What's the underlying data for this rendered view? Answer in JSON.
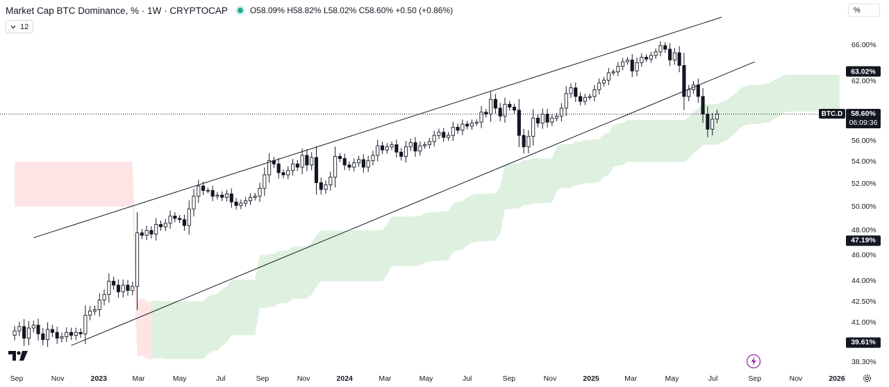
{
  "header": {
    "title": "Market Cap BTC Dominance, % · 1W · CRYPTOCAP",
    "open": "O58.09%",
    "high": "H58.82%",
    "low": "L58.02%",
    "close": "C58.60%",
    "change": "+0.50 (+0.86%)",
    "length_value": "12",
    "scale_mode": "%"
  },
  "colors": {
    "up_body": "#ffffff",
    "down_body": "#131722",
    "wick": "#131722",
    "cloud_bull": "#c8e6c9",
    "cloud_bear": "#ffcdd2",
    "channel_line": "#131722",
    "status_dot": "#22ab94"
  },
  "symbol_tag": "BTC.D",
  "price_tag": {
    "price": "58.60%",
    "countdown": "06:09:36"
  },
  "price_axis_labels": [
    "66.00%",
    "63.02%",
    "62.00%",
    "58.60%",
    "56.00%",
    "54.00%",
    "52.00%",
    "50.00%",
    "48.00%",
    "47.19%",
    "46.00%",
    "44.00%",
    "42.50%",
    "41.00%",
    "39.61%",
    "38.30%"
  ],
  "highlighted_labels": [
    "63.02%",
    "47.19%",
    "39.61%"
  ],
  "chart_data": {
    "type": "candlestick",
    "title": "Market Cap BTC Dominance, % · 1W · CRYPTOCAP",
    "interval": "1W",
    "y_unit": "%",
    "y_scale": "log",
    "ylim": [
      38.0,
      67.5
    ],
    "x_start": "2022-09",
    "x_end": "2026-01",
    "x_ticks": [
      {
        "label": "Sep",
        "date": "2022-09-01"
      },
      {
        "label": "Nov",
        "date": "2022-11-01"
      },
      {
        "label": "2023",
        "date": "2023-01-01",
        "bold": true
      },
      {
        "label": "Mar",
        "date": "2023-03-01"
      },
      {
        "label": "May",
        "date": "2023-05-01"
      },
      {
        "label": "Jul",
        "date": "2023-07-01"
      },
      {
        "label": "Sep",
        "date": "2023-09-01"
      },
      {
        "label": "Nov",
        "date": "2023-11-01"
      },
      {
        "label": "2024",
        "date": "2024-01-01",
        "bold": true
      },
      {
        "label": "Mar",
        "date": "2024-03-01"
      },
      {
        "label": "May",
        "date": "2024-05-01"
      },
      {
        "label": "Jul",
        "date": "2024-07-01"
      },
      {
        "label": "Sep",
        "date": "2024-09-01"
      },
      {
        "label": "Nov",
        "date": "2024-11-01"
      },
      {
        "label": "2025",
        "date": "2025-01-01",
        "bold": true
      },
      {
        "label": "Mar",
        "date": "2025-03-01"
      },
      {
        "label": "May",
        "date": "2025-05-01"
      },
      {
        "label": "Jul",
        "date": "2025-07-01"
      },
      {
        "label": "Sep",
        "date": "2025-09-01"
      },
      {
        "label": "Nov",
        "date": "2025-11-01"
      },
      {
        "label": "2026",
        "date": "2026-01-01",
        "bold": true
      }
    ],
    "closes_weekly": [
      40.4,
      40.7,
      39.9,
      40.6,
      40.8,
      40.2,
      39.8,
      40.5,
      40.3,
      39.9,
      40.0,
      40.3,
      40.1,
      40.3,
      40.2,
      41.5,
      41.8,
      41.9,
      42.6,
      43.0,
      44.0,
      43.7,
      43.2,
      43.7,
      43.3,
      43.6,
      47.8,
      47.6,
      48.0,
      47.7,
      48.5,
      48.3,
      48.6,
      49.2,
      49.0,
      48.9,
      48.4,
      49.8,
      50.9,
      51.8,
      51.4,
      51.4,
      50.9,
      51.0,
      50.8,
      51.1,
      50.4,
      50.1,
      50.3,
      50.5,
      50.8,
      50.9,
      51.6,
      52.8,
      54.1,
      53.8,
      53.0,
      52.8,
      53.2,
      53.8,
      53.5,
      54.6,
      53.7,
      54.4,
      52.1,
      51.5,
      51.9,
      52.6,
      54.5,
      54.3,
      53.7,
      53.5,
      53.9,
      54.2,
      53.5,
      54.1,
      54.6,
      55.5,
      55.1,
      55.4,
      55.6,
      54.9,
      54.5,
      55.4,
      55.8,
      55.0,
      55.5,
      55.6,
      55.9,
      56.5,
      56.8,
      56.3,
      56.5,
      57.3,
      57.0,
      57.6,
      57.4,
      57.7,
      57.8,
      58.8,
      58.6,
      60.1,
      59.2,
      58.4,
      59.6,
      59.3,
      59.0,
      56.5,
      55.4,
      56.4,
      58.2,
      57.7,
      58.6,
      57.8,
      58.2,
      58.4,
      59.2,
      60.7,
      61.3,
      60.4,
      59.9,
      60.3,
      60.4,
      61.1,
      61.8,
      62.1,
      62.9,
      63.0,
      63.6,
      64.1,
      64.3,
      63.1,
      64.0,
      64.6,
      64.4,
      64.8,
      65.2,
      65.9,
      65.5,
      64.3,
      65.1,
      63.7,
      60.4,
      61.1,
      61.6,
      60.4,
      58.6,
      57.1,
      58.1,
      58.6
    ],
    "first_week": "2022-08-29",
    "channel": {
      "upper": [
        {
          "date": "2022-09-26",
          "value": 47.4
        },
        {
          "date": "2025-07-14",
          "value": 69.2
        }
      ],
      "lower": [
        {
          "date": "2022-11-21",
          "value": 39.4
        },
        {
          "date": "2025-09-01",
          "value": 64.1
        }
      ]
    },
    "cloud": {
      "bear_until": "2023-03-20",
      "left_edge_value": 51.8,
      "future_span_top": 62.7
    },
    "last": {
      "open": 58.09,
      "high": 58.82,
      "low": 58.02,
      "close": 58.6,
      "change": "+0.50 (+0.86%)"
    }
  }
}
